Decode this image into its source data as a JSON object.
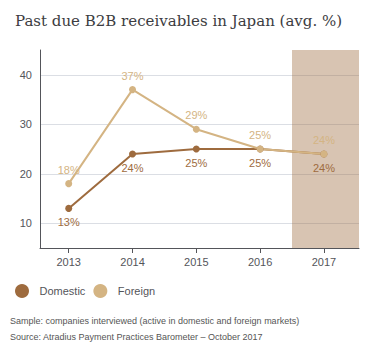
{
  "chart_data": {
    "type": "line",
    "title": "Past due B2B receivables in Japan (avg. %)",
    "x": [
      2013,
      2014,
      2015,
      2016,
      2017
    ],
    "series": [
      {
        "name": "Domestic",
        "color": "#9e6b3e",
        "values": [
          13,
          24,
          25,
          25,
          24
        ],
        "value_labels": [
          "13%",
          "24%",
          "25%",
          "25%",
          "24%"
        ]
      },
      {
        "name": "Foreign",
        "color": "#d4b483",
        "values": [
          18,
          37,
          29,
          25,
          24
        ],
        "value_labels": [
          "18%",
          "37%",
          "29%",
          "25%",
          "24%"
        ]
      }
    ],
    "xlim": [
      2012.55,
      2017.55
    ],
    "xticks": [
      2013,
      2014,
      2015,
      2016,
      2017
    ],
    "ylim": [
      5,
      45
    ],
    "yticks": [
      10,
      20,
      30,
      40
    ],
    "grid": true,
    "legend": "lower left",
    "marker": "circle",
    "data_labels": true,
    "shaded_range": [
      2016.5,
      2017.55
    ],
    "footnotes": [
      "Sample: companies interviewed (active in domestic and foreign markets)",
      "Source: Atradius Payment Practices Barometer – October 2017"
    ]
  }
}
